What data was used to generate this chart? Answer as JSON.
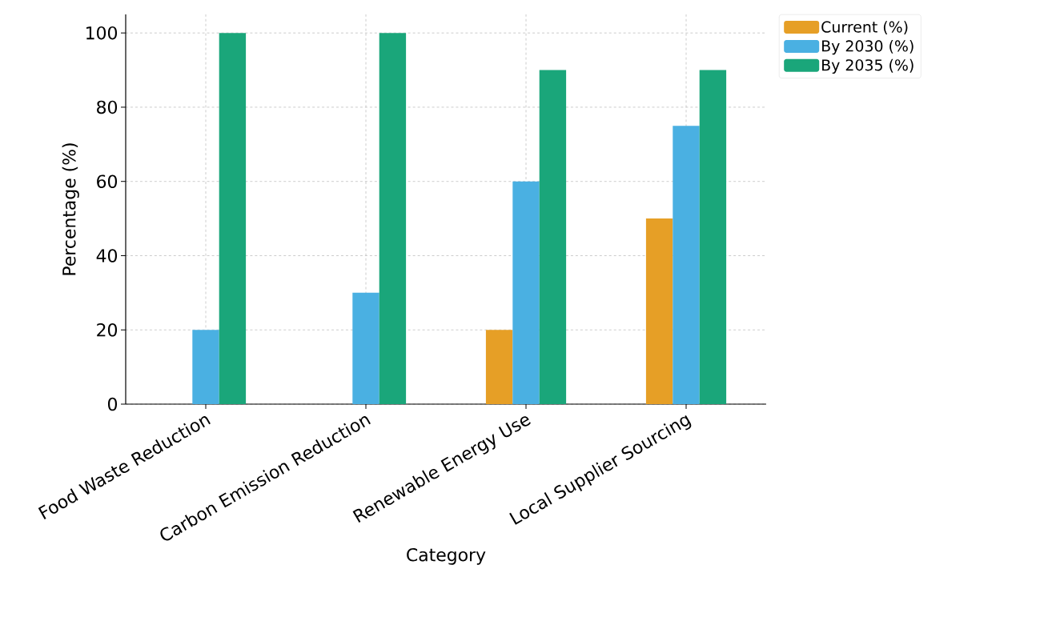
{
  "chart_data": {
    "type": "bar",
    "xlabel": "Category",
    "ylabel": "Percentage (%)",
    "categories": [
      "Food Waste Reduction",
      "Carbon Emission Reduction",
      "Renewable Energy Use",
      "Local Supplier Sourcing"
    ],
    "series": [
      {
        "name": "Current (%)",
        "color": "#e69f26",
        "values": [
          0,
          0,
          20,
          50
        ]
      },
      {
        "name": "By 2030 (%)",
        "color": "#4ab0e2",
        "values": [
          20,
          30,
          60,
          75
        ]
      },
      {
        "name": "By 2035 (%)",
        "color": "#1aa67a",
        "values": [
          100,
          100,
          90,
          90
        ]
      }
    ],
    "ylim": [
      0,
      105
    ],
    "yticks": [
      0,
      20,
      40,
      60,
      80,
      100
    ],
    "grid": true,
    "legend": "top right"
  }
}
